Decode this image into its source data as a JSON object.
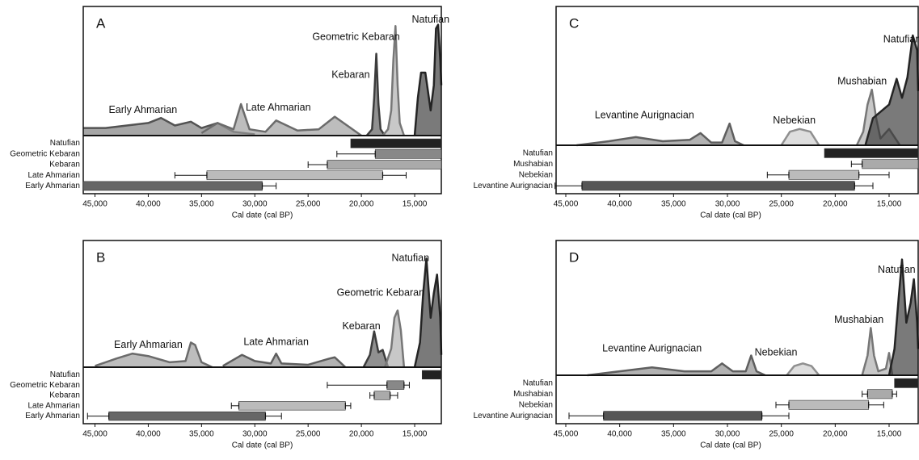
{
  "chart_data": [
    {
      "type": "density-phases",
      "panel": "A",
      "xlabel": "Cal date (cal BP)",
      "xlim": [
        46100,
        12500
      ],
      "xticks": [
        {
          "value": 45000,
          "label": "45,000"
        },
        {
          "value": 40000,
          "label": "40,000"
        },
        {
          "value": 35000,
          "label": "35,000"
        },
        {
          "value": 30000,
          "label": "30,000"
        },
        {
          "value": 25000,
          "label": "25,000"
        },
        {
          "value": 20000,
          "label": "20,000"
        },
        {
          "value": 15000,
          "label": "15,000"
        }
      ],
      "ylim": [
        0,
        100
      ],
      "series": [
        {
          "name": "Early Ahmarian",
          "color": "#777777",
          "x": [
            46100,
            44000,
            42000,
            40000,
            38800,
            37500,
            36000,
            35000,
            33500,
            32000,
            30000
          ],
          "values": [
            6,
            6,
            8,
            10,
            14,
            8,
            11,
            6,
            10,
            3,
            1
          ]
        },
        {
          "name": "Late Ahmarian",
          "color": "#999999",
          "x": [
            35000,
            33500,
            32000,
            31300,
            30500,
            29000,
            28000,
            26000,
            24000,
            22500,
            21000,
            20000
          ],
          "values": [
            2,
            10,
            5,
            25,
            5,
            3,
            12,
            4,
            5,
            15,
            6,
            0
          ]
        },
        {
          "name": "Kebaran",
          "color": "#555555",
          "x": [
            19500,
            19000,
            18800,
            18600,
            18400,
            18200,
            17800
          ],
          "values": [
            0,
            5,
            30,
            65,
            25,
            5,
            0
          ]
        },
        {
          "name": "Geometric Kebaran",
          "color": "#aaaaaa",
          "x": [
            18000,
            17500,
            17200,
            17000,
            16800,
            16600,
            16400,
            16000
          ],
          "values": [
            0,
            5,
            20,
            60,
            87,
            40,
            10,
            0
          ]
        },
        {
          "name": "Natufian",
          "color": "#333333",
          "x": [
            15000,
            14700,
            14400,
            14000,
            13500,
            13200,
            13000,
            12800,
            12600,
            12500
          ],
          "values": [
            0,
            30,
            50,
            50,
            20,
            40,
            85,
            88,
            60,
            40
          ]
        }
      ],
      "annotations": [
        {
          "text": "Natufian",
          "x": 13500,
          "y": 92
        },
        {
          "text": "Geometric Kebaran",
          "x": 20500,
          "y": 78
        },
        {
          "text": "Kebaran",
          "x": 21000,
          "y": 48
        },
        {
          "text": "Late Ahmarian",
          "x": 27800,
          "y": 22
        },
        {
          "text": "Early Ahmarian",
          "x": 40500,
          "y": 20
        }
      ],
      "phases": [
        {
          "name": "Natufian",
          "color": "#222222",
          "values": [
            null,
            21000,
            12500,
            null
          ]
        },
        {
          "name": "Geometric Kebaran",
          "color": "#888888",
          "values": [
            22300,
            18700,
            12500,
            null
          ]
        },
        {
          "name": "Kebaran",
          "color": "#aaaaaa",
          "values": [
            25000,
            23200,
            12500,
            null
          ]
        },
        {
          "name": "Late Ahmarian",
          "color": "#bbbbbb",
          "values": [
            37500,
            34500,
            18000,
            15800
          ]
        },
        {
          "name": "Early Ahmarian",
          "color": "#666666",
          "values": [
            null,
            46100,
            29300,
            28000
          ]
        }
      ]
    },
    {
      "type": "density-phases",
      "panel": "B",
      "xlabel": "Cal date (cal BP)",
      "xlim": [
        46100,
        12500
      ],
      "xticks": [
        {
          "value": 45000,
          "label": "45,000"
        },
        {
          "value": 40000,
          "label": "40,000"
        },
        {
          "value": 35000,
          "label": "35,000"
        },
        {
          "value": 30000,
          "label": "30,000"
        },
        {
          "value": 25000,
          "label": "25,000"
        },
        {
          "value": 20000,
          "label": "20,000"
        },
        {
          "value": 15000,
          "label": "15,000"
        }
      ],
      "ylim": [
        0,
        100
      ],
      "series": [
        {
          "name": "Early Ahmarian",
          "color": "#999999",
          "x": [
            45000,
            43000,
            41500,
            40000,
            38000,
            36500,
            36000,
            35600,
            35000,
            34000
          ],
          "values": [
            1,
            7,
            11,
            9,
            4,
            5,
            20,
            18,
            4,
            0
          ]
        },
        {
          "name": "Late Ahmarian",
          "color": "#888888",
          "x": [
            33000,
            31200,
            30000,
            28500,
            28000,
            27500,
            25000,
            23000,
            22500,
            21500
          ],
          "values": [
            1,
            10,
            5,
            3,
            11,
            3,
            2,
            7,
            8,
            0
          ]
        },
        {
          "name": "Kebaran",
          "color": "#555555",
          "x": [
            19800,
            19200,
            18800,
            18400,
            18000,
            17500
          ],
          "values": [
            0,
            10,
            29,
            12,
            14,
            0
          ]
        },
        {
          "name": "Geometric Kebaran",
          "color": "#aaaaaa",
          "x": [
            17800,
            17200,
            16900,
            16600,
            16300,
            16000
          ],
          "values": [
            0,
            15,
            40,
            46,
            30,
            0
          ]
        },
        {
          "name": "Natufian",
          "color": "#333333",
          "x": [
            15000,
            14500,
            14200,
            13900,
            13500,
            13200,
            12900,
            12600,
            12500
          ],
          "values": [
            0,
            20,
            60,
            88,
            40,
            60,
            75,
            40,
            10
          ]
        }
      ],
      "annotations": [
        {
          "text": "Natufian",
          "x": 15400,
          "y": 88
        },
        {
          "text": "Geometric Kebaran",
          "x": 18200,
          "y": 60
        },
        {
          "text": "Kebaran",
          "x": 20000,
          "y": 33
        },
        {
          "text": "Late Ahmarian",
          "x": 28000,
          "y": 20
        },
        {
          "text": "Early Ahmarian",
          "x": 40000,
          "y": 18
        }
      ],
      "phases": [
        {
          "name": "Natufian",
          "color": "#222222",
          "values": [
            null,
            14300,
            12500,
            null
          ]
        },
        {
          "name": "Geometric Kebaran",
          "color": "#888888",
          "values": [
            23200,
            17600,
            16000,
            15500
          ]
        },
        {
          "name": "Kebaran",
          "color": "#aaaaaa",
          "values": [
            19200,
            18800,
            17300,
            16600
          ]
        },
        {
          "name": "Late Ahmarian",
          "color": "#bbbbbb",
          "values": [
            32200,
            31500,
            21500,
            21000
          ]
        },
        {
          "name": "Early Ahmarian",
          "color": "#666666",
          "values": [
            45700,
            43700,
            29000,
            27500
          ]
        }
      ]
    },
    {
      "type": "density-phases",
      "panel": "C",
      "xlabel": "Cal date (cal BP)",
      "xlim": [
        45900,
        12300
      ],
      "xticks": [
        {
          "value": 45000,
          "label": "45,000"
        },
        {
          "value": 40000,
          "label": "40,000"
        },
        {
          "value": 35000,
          "label": "35,000"
        },
        {
          "value": 30000,
          "label": "30,000"
        },
        {
          "value": 25000,
          "label": "25,000"
        },
        {
          "value": 20000,
          "label": "20,000"
        },
        {
          "value": 15000,
          "label": "15,000"
        }
      ],
      "ylim": [
        0,
        100
      ],
      "series": [
        {
          "name": "Levantine Aurignacian",
          "color": "#888888",
          "x": [
            44000,
            41000,
            38500,
            36000,
            33500,
            32500,
            31500,
            30500,
            29800,
            29300,
            28500
          ],
          "values": [
            0,
            3,
            6,
            3,
            4,
            9,
            2,
            2,
            16,
            3,
            0
          ]
        },
        {
          "name": "Nebekian",
          "color": "#cccccc",
          "x": [
            25000,
            24200,
            23300,
            22300,
            21500
          ],
          "values": [
            0,
            10,
            12,
            10,
            0
          ]
        },
        {
          "name": "Mushabian",
          "color": "#aaaaaa",
          "x": [
            18000,
            17400,
            17000,
            16600,
            16200,
            15800,
            15000,
            14000
          ],
          "values": [
            0,
            10,
            30,
            41,
            20,
            5,
            12,
            0
          ]
        },
        {
          "name": "Natufian",
          "color": "#333333",
          "x": [
            17200,
            16500,
            15000,
            14300,
            13800,
            13300,
            12800,
            12400,
            12300
          ],
          "values": [
            0,
            20,
            30,
            49,
            35,
            50,
            81,
            70,
            40
          ]
        }
      ],
      "annotations": [
        {
          "text": "Natufian",
          "x": 13800,
          "y": 78
        },
        {
          "text": "Mushabian",
          "x": 17500,
          "y": 47
        },
        {
          "text": "Nebekian",
          "x": 23800,
          "y": 18
        },
        {
          "text": "Levantine Aurignacian",
          "x": 37700,
          "y": 22
        }
      ],
      "phases": [
        {
          "name": "Natufian",
          "color": "#222222",
          "values": [
            null,
            21000,
            12300,
            null
          ]
        },
        {
          "name": "Mushabian",
          "color": "#aaaaaa",
          "values": [
            18500,
            17500,
            12300,
            null
          ]
        },
        {
          "name": "Nebekian",
          "color": "#bbbbbb",
          "values": [
            26300,
            24300,
            17800,
            15000
          ]
        },
        {
          "name": "Levantine Aurignacian",
          "color": "#555555",
          "values": [
            46000,
            43500,
            18200,
            16500
          ]
        }
      ]
    },
    {
      "type": "density-phases",
      "panel": "D",
      "xlabel": "Cal date (cal BP)",
      "xlim": [
        45900,
        12300
      ],
      "xticks": [
        {
          "value": 45000,
          "label": "45,000"
        },
        {
          "value": 40000,
          "label": "40,000"
        },
        {
          "value": 35000,
          "label": "35,000"
        },
        {
          "value": 30000,
          "label": "30,000"
        },
        {
          "value": 25000,
          "label": "25,000"
        },
        {
          "value": 20000,
          "label": "20,000"
        },
        {
          "value": 15000,
          "label": "15,000"
        }
      ],
      "ylim": [
        0,
        100
      ],
      "series": [
        {
          "name": "Levantine Aurignacian",
          "color": "#888888",
          "x": [
            43000,
            40000,
            37000,
            34000,
            31500,
            30500,
            29500,
            28300,
            27800,
            27300,
            26500
          ],
          "values": [
            0,
            3,
            6,
            3,
            3,
            9,
            3,
            3,
            15,
            3,
            0
          ]
        },
        {
          "name": "Nebekian",
          "color": "#cccccc",
          "x": [
            24500,
            23800,
            23000,
            22200,
            21500
          ],
          "values": [
            0,
            7,
            9,
            7,
            0
          ]
        },
        {
          "name": "Mushabian",
          "color": "#aaaaaa",
          "x": [
            17500,
            17000,
            16700,
            16400,
            16000,
            15300,
            15000,
            14700
          ],
          "values": [
            0,
            15,
            36,
            15,
            3,
            5,
            17,
            0
          ]
        },
        {
          "name": "Natufian",
          "color": "#333333",
          "x": [
            15000,
            14500,
            14100,
            13800,
            13400,
            13000,
            12700,
            12400,
            12300
          ],
          "values": [
            0,
            20,
            60,
            88,
            40,
            55,
            73,
            40,
            20
          ]
        }
      ],
      "annotations": [
        {
          "text": "Natufian",
          "x": 14300,
          "y": 80
        },
        {
          "text": "Mushabian",
          "x": 17800,
          "y": 42
        },
        {
          "text": "Nebekian",
          "x": 25500,
          "y": 17
        },
        {
          "text": "Levantine Aurignacian",
          "x": 37000,
          "y": 20
        }
      ],
      "phases": [
        {
          "name": "Natufian",
          "color": "#222222",
          "values": [
            null,
            14500,
            12300,
            null
          ]
        },
        {
          "name": "Mushabian",
          "color": "#aaaaaa",
          "values": [
            17500,
            17000,
            14700,
            14300
          ]
        },
        {
          "name": "Nebekian",
          "color": "#bbbbbb",
          "values": [
            25500,
            24300,
            16900,
            15500
          ]
        },
        {
          "name": "Levantine Aurignacian",
          "color": "#555555",
          "values": [
            44700,
            41500,
            26800,
            24300
          ]
        }
      ]
    }
  ]
}
